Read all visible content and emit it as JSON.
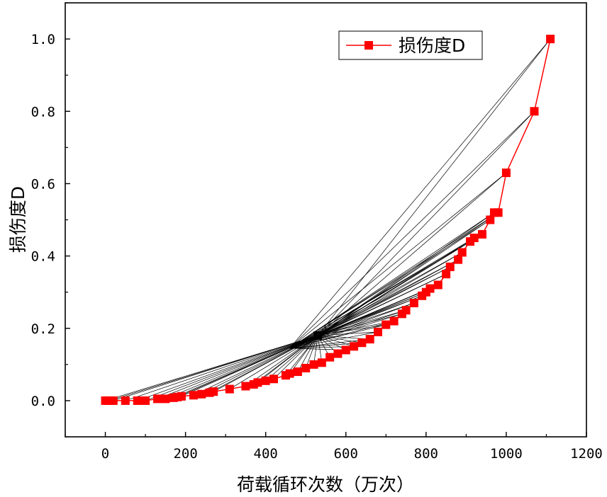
{
  "chart_data": {
    "type": "line",
    "title": "",
    "xlabel": "荷载循环次数（万次）",
    "ylabel": "损伤度D",
    "xlim": [
      -100,
      1200
    ],
    "ylim": [
      -0.1,
      1.1
    ],
    "xticks": [
      0,
      200,
      400,
      600,
      800,
      1000,
      1200
    ],
    "yticks": [
      0.0,
      0.2,
      0.4,
      0.6,
      0.8,
      1.0
    ],
    "xtick_labels": [
      "0",
      "200",
      "400",
      "600",
      "800",
      "1000",
      "1200"
    ],
    "ytick_labels": [
      "0.0",
      "0.2",
      "0.4",
      "0.6",
      "0.8",
      "1.0"
    ],
    "legend_position": "top-right",
    "series": [
      {
        "name": "损伤度D",
        "color": "#ff0000",
        "marker": "square",
        "x": [
          0,
          10,
          20,
          50,
          80,
          100,
          130,
          150,
          170,
          180,
          190,
          220,
          240,
          260,
          270,
          310,
          350,
          370,
          380,
          400,
          420,
          450,
          460,
          480,
          500,
          520,
          540,
          560,
          580,
          600,
          620,
          640,
          660,
          680,
          700,
          720,
          740,
          750,
          770,
          790,
          800,
          810,
          830,
          850,
          860,
          880,
          890,
          910,
          920,
          940,
          960,
          970,
          980,
          1000,
          1070,
          1110
        ],
        "y": [
          0.0,
          0.0,
          0.0,
          0.0,
          0.0,
          0.0,
          0.005,
          0.005,
          0.008,
          0.01,
          0.012,
          0.015,
          0.018,
          0.022,
          0.025,
          0.032,
          0.04,
          0.045,
          0.05,
          0.055,
          0.06,
          0.07,
          0.075,
          0.08,
          0.09,
          0.1,
          0.105,
          0.12,
          0.13,
          0.14,
          0.15,
          0.16,
          0.17,
          0.19,
          0.21,
          0.22,
          0.24,
          0.25,
          0.27,
          0.29,
          0.3,
          0.31,
          0.32,
          0.35,
          0.37,
          0.39,
          0.41,
          0.44,
          0.45,
          0.46,
          0.5,
          0.52,
          0.52,
          0.63,
          0.8,
          1.0
        ]
      }
    ],
    "fan_lines": {
      "color": "#000000",
      "center_x": 530,
      "center_y": 0.18,
      "description_values_are_target_points_in_series": true
    }
  }
}
